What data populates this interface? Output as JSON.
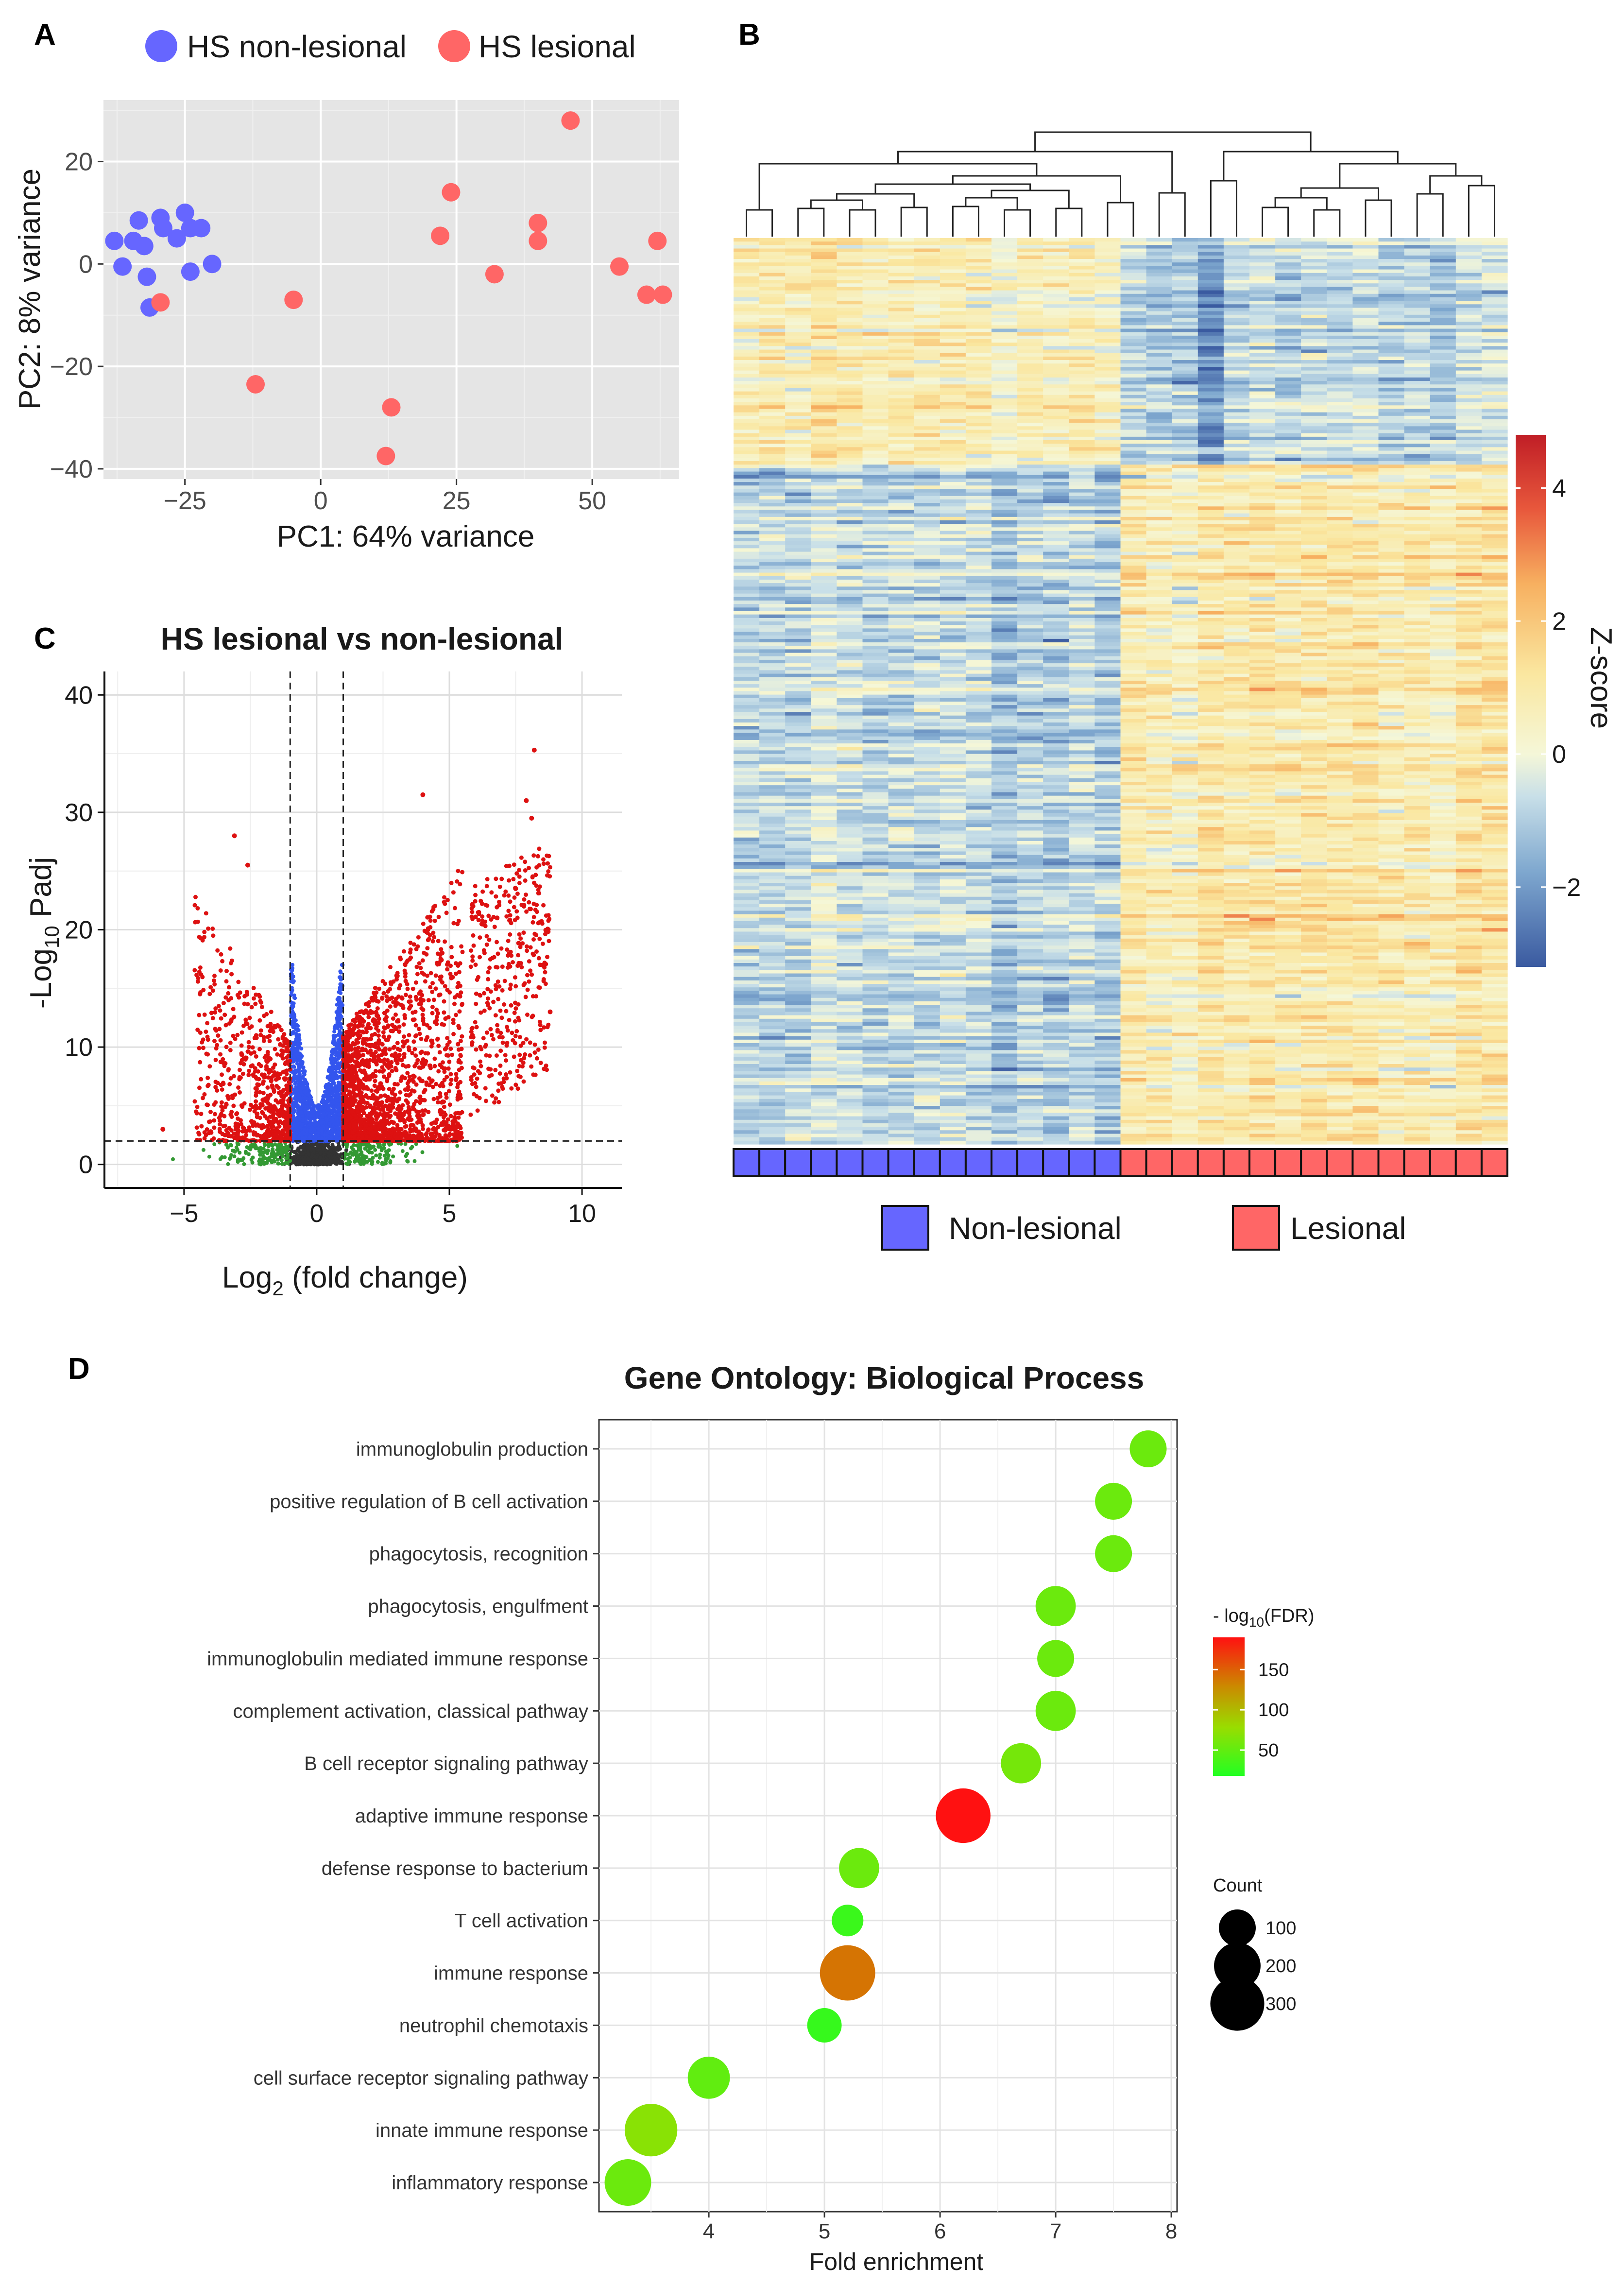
{
  "panels": {
    "A": "A",
    "B": "B",
    "C": "C",
    "D": "D"
  },
  "colors": {
    "nonlesional": "#6666ff",
    "lesional": "#ff6666",
    "panel_bg": "#e5e5e5",
    "volcano_sig": "#dd1111",
    "volcano_padj": "#3355ee",
    "volcano_fc": "#339933",
    "volcano_ns": "#333333"
  },
  "chart_data": [
    {
      "id": "A",
      "type": "scatter",
      "title": "",
      "xlabel": "PC1: 64% variance",
      "ylabel": "PC2: 8% variance",
      "xlim": [
        -40,
        66
      ],
      "ylim": [
        -42,
        32
      ],
      "xticks": [
        -25,
        0,
        25,
        50
      ],
      "xtick_labels": [
        "−25",
        "0",
        "25",
        "50"
      ],
      "yticks": [
        -40,
        -20,
        0,
        20
      ],
      "ytick_labels": [
        "−40",
        "−20",
        "0",
        "20"
      ],
      "legend": [
        "HS non-lesional",
        "HS lesional"
      ],
      "series": [
        {
          "name": "HS non-lesional",
          "points": [
            [
              -38,
              4.5
            ],
            [
              -36.5,
              -0.5
            ],
            [
              -34.5,
              4.5
            ],
            [
              -33.5,
              8.5
            ],
            [
              -32.5,
              3.5
            ],
            [
              -32,
              -2.5
            ],
            [
              -31.5,
              -8.5
            ],
            [
              -29.5,
              9
            ],
            [
              -29,
              7
            ],
            [
              -26.5,
              5
            ],
            [
              -25,
              10
            ],
            [
              -24,
              7
            ],
            [
              -24,
              -1.5
            ],
            [
              -22,
              7
            ],
            [
              -20,
              0
            ]
          ]
        },
        {
          "name": "HS lesional",
          "points": [
            [
              -29.5,
              -7.5
            ],
            [
              -5,
              -7
            ],
            [
              -12,
              -23.5
            ],
            [
              13,
              -28
            ],
            [
              12,
              -37.5
            ],
            [
              22,
              5.5
            ],
            [
              24,
              14
            ],
            [
              32,
              -2
            ],
            [
              40,
              8
            ],
            [
              40,
              4.5
            ],
            [
              46,
              28
            ],
            [
              55,
              -0.5
            ],
            [
              60,
              -6
            ],
            [
              62,
              4.5
            ],
            [
              63,
              -6
            ]
          ]
        }
      ]
    },
    {
      "id": "B",
      "type": "heatmap",
      "legend": [
        "Non-lesional",
        "Lesional"
      ],
      "colorbar_title": "Z-score",
      "colorbar_range": [
        -3.2,
        4.8
      ],
      "colorbar_ticks": [
        -2,
        0,
        2,
        4
      ],
      "colorbar_tick_labels": [
        "−2",
        "0",
        "2",
        "4"
      ],
      "samples_nonlesional": 15,
      "samples_lesional": 15
    },
    {
      "id": "C",
      "type": "scatter",
      "title": "HS lesional vs non-lesional",
      "xlabel": "Log",
      "xlabel_sub": "2",
      "xlabel_tail": " (fold change)",
      "ylabel": "-Log",
      "ylabel_sub": "10",
      "ylabel_tail": " Padj",
      "xlim": [
        -8,
        11.5
      ],
      "ylim": [
        -2,
        42
      ],
      "xticks": [
        -5,
        0,
        5,
        10
      ],
      "xtick_labels": [
        "−5",
        "0",
        "5",
        "10"
      ],
      "yticks": [
        0,
        10,
        20,
        30,
        40
      ],
      "ytick_labels": [
        "0",
        "10",
        "20",
        "30",
        "40"
      ],
      "fc_threshold": 1,
      "padj_threshold": 2,
      "highlight_points": [
        [
          8.2,
          35.3
        ],
        [
          7.9,
          31
        ],
        [
          4,
          31.5
        ],
        [
          -3.1,
          28
        ],
        [
          -2.6,
          25.5
        ],
        [
          8.8,
          13
        ],
        [
          8.1,
          29.5
        ],
        [
          -5.8,
          3
        ],
        [
          6.8,
          21
        ],
        [
          7.5,
          23.5
        ]
      ]
    },
    {
      "id": "D",
      "type": "scatter",
      "title": "Gene Ontology: Biological Process",
      "xlabel": "Fold enrichment",
      "xlim": [
        3.2,
        8
      ],
      "xticks": [
        4,
        5,
        6,
        7,
        8
      ],
      "xtick_labels": [
        "4",
        "5",
        "6",
        "7",
        "8"
      ],
      "color_legend_title": "- log",
      "color_legend_sub": "10",
      "color_legend_tail": "(FDR)",
      "color_range": [
        18,
        190
      ],
      "color_ticks": [
        50,
        100,
        150
      ],
      "color_tick_labels": [
        "50",
        "100",
        "150"
      ],
      "size_legend_title": "Count",
      "size_ticks": [
        100,
        200,
        300
      ],
      "size_tick_labels": [
        "100",
        "200",
        "300"
      ],
      "terms": [
        {
          "term": "immunoglobulin production",
          "fold": 7.8,
          "fdr": 55,
          "count": 100
        },
        {
          "term": "positive regulation of B cell activation",
          "fold": 7.5,
          "fdr": 55,
          "count": 100
        },
        {
          "term": "phagocytosis, recognition",
          "fold": 7.5,
          "fdr": 55,
          "count": 100
        },
        {
          "term": "phagocytosis, engulfment",
          "fold": 7.0,
          "fdr": 55,
          "count": 130
        },
        {
          "term": "immunoglobulin mediated immune response",
          "fold": 7.0,
          "fdr": 55,
          "count": 100
        },
        {
          "term": "complement activation, classical pathway",
          "fold": 7.0,
          "fdr": 55,
          "count": 130
        },
        {
          "term": "B cell receptor signaling pathway",
          "fold": 6.7,
          "fdr": 60,
          "count": 130
        },
        {
          "term": "adaptive immune response",
          "fold": 6.2,
          "fdr": 190,
          "count": 310
        },
        {
          "term": "defense response to bacterium",
          "fold": 5.3,
          "fdr": 55,
          "count": 130
        },
        {
          "term": "T cell activation",
          "fold": 5.2,
          "fdr": 30,
          "count": 60
        },
        {
          "term": "immune response",
          "fold": 5.2,
          "fdr": 140,
          "count": 320
        },
        {
          "term": "neutrophil chemotaxis",
          "fold": 5.0,
          "fdr": 28,
          "count": 80
        },
        {
          "term": "cell surface receptor signaling pathway",
          "fold": 4.0,
          "fdr": 50,
          "count": 150
        },
        {
          "term": "innate immune response",
          "fold": 3.5,
          "fdr": 70,
          "count": 280
        },
        {
          "term": "inflammatory response",
          "fold": 3.3,
          "fdr": 55,
          "count": 200
        }
      ]
    }
  ]
}
